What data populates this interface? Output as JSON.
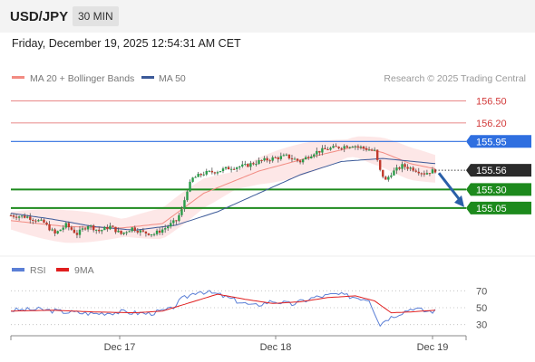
{
  "header": {
    "symbol": "USD/JPY",
    "timeframe": "30 MIN"
  },
  "datetime": "Friday, December 19, 2025 12:54:31 AM CET",
  "colors": {
    "ma20": "#f28b82",
    "ma50": "#3b5998",
    "rsi": "#5b7fd6",
    "rsi_ma": "#e01e1e",
    "green_level": "#1d8a1d",
    "blue_level": "#2f6fe0",
    "red_level": "#e06060",
    "price_tag": "#2b2b2b",
    "arrow": "#2a5fa8"
  },
  "legend": {
    "ma20": "MA 20 + Bollinger Bands",
    "ma50": "MA 50",
    "credit": "Research © 2025 Trading Central"
  },
  "rsi_legend": {
    "rsi": "RSI",
    "ma": "9MA"
  },
  "chart_data": [
    {
      "type": "candlestick",
      "title": "USD/JPY 30 MIN",
      "x_ticks": [
        "Dec 17",
        "Dec 18",
        "Dec 19"
      ],
      "ylim": [
        154.4,
        156.7
      ],
      "current_price": 155.56,
      "levels": [
        {
          "value": 156.5,
          "label": "156.50",
          "style": "resistance-red"
        },
        {
          "value": 156.2,
          "label": "156.20",
          "style": "resistance-red"
        },
        {
          "value": 155.95,
          "label": "155.95",
          "style": "pivot-blue"
        },
        {
          "value": 155.3,
          "label": "155.30",
          "style": "support-green"
        },
        {
          "value": 155.05,
          "label": "155.05",
          "style": "support-green"
        }
      ],
      "forecast": {
        "direction": "down",
        "from": 155.56,
        "to": 155.05
      },
      "close_path": [
        [
          0,
          154.95
        ],
        [
          6,
          154.93
        ],
        [
          12,
          154.85
        ],
        [
          16,
          154.7
        ],
        [
          20,
          154.82
        ],
        [
          24,
          154.7
        ],
        [
          28,
          154.82
        ],
        [
          32,
          154.74
        ],
        [
          36,
          154.8
        ],
        [
          40,
          154.7
        ],
        [
          44,
          154.78
        ],
        [
          48,
          154.72
        ],
        [
          52,
          154.7
        ],
        [
          56,
          154.78
        ],
        [
          60,
          154.88
        ],
        [
          62,
          155.02
        ],
        [
          64,
          155.3
        ],
        [
          66,
          155.45
        ],
        [
          70,
          155.52
        ],
        [
          75,
          155.55
        ],
        [
          80,
          155.6
        ],
        [
          85,
          155.62
        ],
        [
          90,
          155.68
        ],
        [
          95,
          155.72
        ],
        [
          100,
          155.75
        ],
        [
          105,
          155.68
        ],
        [
          110,
          155.8
        ],
        [
          115,
          155.85
        ],
        [
          120,
          155.88
        ],
        [
          124,
          155.9
        ],
        [
          128,
          155.86
        ],
        [
          132,
          155.82
        ],
        [
          134,
          155.55
        ],
        [
          136,
          155.42
        ],
        [
          138,
          155.52
        ],
        [
          142,
          155.62
        ],
        [
          146,
          155.58
        ],
        [
          150,
          155.52
        ],
        [
          154,
          155.56
        ]
      ],
      "series": [
        {
          "name": "MA 20 + Bollinger Bands",
          "values": [
            [
              0,
              154.88
            ],
            [
              20,
              154.8
            ],
            [
              40,
              154.78
            ],
            [
              55,
              154.84
            ],
            [
              70,
              155.25
            ],
            [
              90,
              155.55
            ],
            [
              110,
              155.75
            ],
            [
              125,
              155.88
            ],
            [
              135,
              155.8
            ],
            [
              145,
              155.65
            ],
            [
              154,
              155.58
            ]
          ]
        },
        {
          "name": "MA 50",
          "values": [
            [
              0,
              154.98
            ],
            [
              15,
              154.9
            ],
            [
              30,
              154.8
            ],
            [
              45,
              154.75
            ],
            [
              60,
              154.82
            ],
            [
              75,
              155.0
            ],
            [
              90,
              155.25
            ],
            [
              105,
              155.5
            ],
            [
              120,
              155.68
            ],
            [
              135,
              155.72
            ],
            [
              154,
              155.65
            ]
          ]
        }
      ]
    },
    {
      "type": "line",
      "title": "RSI",
      "ylim": [
        20,
        80
      ],
      "y_ticks": [
        70,
        50,
        30
      ],
      "series": [
        {
          "name": "RSI",
          "values": [
            [
              0,
              47
            ],
            [
              10,
              48
            ],
            [
              20,
              45
            ],
            [
              30,
              43
            ],
            [
              40,
              45
            ],
            [
              50,
              43
            ],
            [
              58,
              48
            ],
            [
              62,
              60
            ],
            [
              68,
              70
            ],
            [
              75,
              66
            ],
            [
              82,
              58
            ],
            [
              88,
              52
            ],
            [
              95,
              58
            ],
            [
              102,
              54
            ],
            [
              110,
              62
            ],
            [
              118,
              66
            ],
            [
              126,
              62
            ],
            [
              130,
              60
            ],
            [
              134,
              30
            ],
            [
              136,
              36
            ],
            [
              140,
              42
            ],
            [
              146,
              50
            ],
            [
              150,
              46
            ],
            [
              154,
              46
            ]
          ]
        },
        {
          "name": "9MA",
          "values": [
            [
              0,
              46
            ],
            [
              15,
              47
            ],
            [
              30,
              45
            ],
            [
              45,
              44
            ],
            [
              55,
              46
            ],
            [
              65,
              56
            ],
            [
              75,
              66
            ],
            [
              85,
              60
            ],
            [
              95,
              55
            ],
            [
              105,
              57
            ],
            [
              115,
              62
            ],
            [
              125,
              64
            ],
            [
              132,
              58
            ],
            [
              138,
              44
            ],
            [
              145,
              45
            ],
            [
              154,
              47
            ]
          ]
        }
      ]
    }
  ]
}
